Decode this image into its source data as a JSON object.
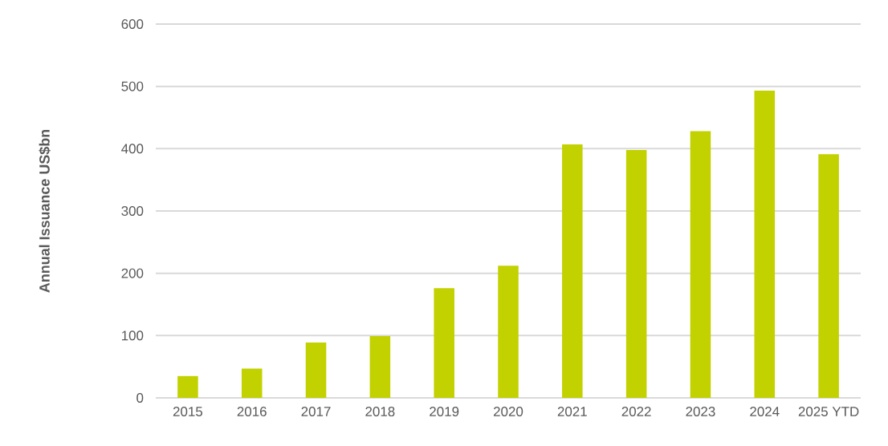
{
  "chart_data": {
    "type": "bar",
    "ylabel": "Annual Issuance US$bn",
    "categories": [
      "2015",
      "2016",
      "2017",
      "2018",
      "2019",
      "2020",
      "2021",
      "2022",
      "2023",
      "2024",
      "2025 YTD"
    ],
    "values": [
      35,
      47,
      89,
      99,
      176,
      212,
      407,
      398,
      428,
      493,
      391
    ],
    "color": "#c2d100",
    "ylim": [
      0,
      600
    ],
    "yticks": [
      0,
      100,
      200,
      300,
      400,
      500,
      600
    ],
    "grid": "y"
  }
}
